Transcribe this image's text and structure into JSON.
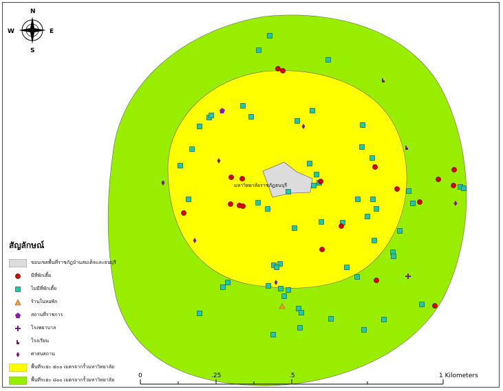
{
  "compass": {
    "n": "N",
    "s": "S",
    "e": "E",
    "w": "W"
  },
  "university_label": "มหาวิทยาลัยราชภัฏธนบุรี",
  "legend": {
    "title": "สัญลักษณ์",
    "items": [
      {
        "label": "ขอบเขตพื้นที่ราชภัฏบ้านสมเด็จและธนบุรี",
        "symbol": "gray-polygon",
        "color": "#dcdcdc"
      },
      {
        "label": "มีที่พักเตี้ย",
        "symbol": "red-circle",
        "color": "#d40000"
      },
      {
        "label": "ไม่มีที่พักเตี้ย",
        "symbol": "teal-square",
        "color": "#20c8a8"
      },
      {
        "label": "ร้านในหอพัก",
        "symbol": "orange-triangle",
        "color": "#f0a030"
      },
      {
        "label": "สถานที่ราชการ",
        "symbol": "purple-pentagon",
        "color": "#8a1aa8"
      },
      {
        "label": "โรงพยาบาล",
        "symbol": "purple-cross",
        "color": "#6a1a8a"
      },
      {
        "label": "โรงเรียน",
        "symbol": "school-icon",
        "color": "#6a1a6a"
      },
      {
        "label": "ศาสนสถาน",
        "symbol": "purple-diamond",
        "color": "#7a1a8a"
      },
      {
        "label": "พื้นที่ระยะ ๕๐๐ เมตรจากรั้วมหาวิทยาลัย",
        "symbol": "yellow-box",
        "color": "#ffff00"
      },
      {
        "label": "พื้นที่ระยะ ๘๐๐ เมตรจากรั้วมหาวิทยาลัย",
        "symbol": "green-box",
        "color": "#99ee00"
      }
    ]
  },
  "scalebar": {
    "ticks": [
      "0",
      ".25",
      ".5",
      "1 Kilometers"
    ]
  },
  "zones": {
    "outer_color": "#99ee00",
    "inner_color": "#ffff00",
    "campus_color": "#dcdcdc"
  }
}
